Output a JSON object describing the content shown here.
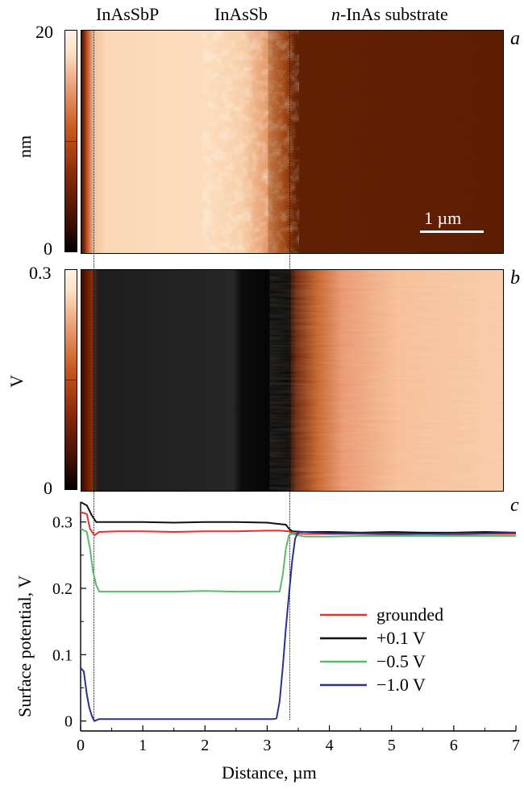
{
  "labels": {
    "layer_1": "InAsSbP",
    "layer_2": "InAsSb",
    "substrate_italic": "n",
    "substrate_rest": "-InAs substrate"
  },
  "panels": {
    "a": {
      "letter": "a",
      "colorbar_max": "20",
      "colorbar_min": "0",
      "colorbar_unit": "nm",
      "scalebar": "1 µm"
    },
    "b": {
      "letter": "b",
      "colorbar_max": "0.3",
      "colorbar_min": "0",
      "colorbar_unit": "V"
    },
    "c": {
      "letter": "c"
    }
  },
  "colors": {
    "grounded": "#e8302a",
    "plus_0_1": "#111111",
    "minus_0_5": "#5cba6c",
    "minus_1_0": "#2e2f8f",
    "map_dark": "#3a0a00",
    "map_light": "#fbd8b6"
  },
  "chart_data": {
    "type": "line",
    "xlabel": "Distance, µm",
    "ylabel": "Surface potential, V",
    "xlim": [
      0,
      7
    ],
    "ylim": [
      -0.015,
      0.33
    ],
    "xticks": [
      0,
      1,
      2,
      3,
      4,
      5,
      6,
      7
    ],
    "yticks": [
      0,
      0.1,
      0.2,
      0.3
    ],
    "ytick_labels": [
      "0",
      "0.1",
      "0.2",
      "0.3"
    ],
    "legend_position": "right",
    "vertical_markers_x": [
      0.2,
      3.35
    ],
    "series": [
      {
        "name": "grounded",
        "color": "#e8302a",
        "x": [
          0.0,
          0.1,
          0.15,
          0.22,
          0.3,
          0.6,
          1.0,
          1.5,
          2.0,
          2.5,
          3.0,
          3.2,
          3.35,
          3.4,
          3.6,
          4.0,
          4.5,
          5.0,
          5.5,
          6.0,
          6.5,
          7.0
        ],
        "values": [
          0.315,
          0.312,
          0.29,
          0.28,
          0.285,
          0.286,
          0.286,
          0.285,
          0.286,
          0.286,
          0.287,
          0.287,
          0.286,
          0.283,
          0.282,
          0.282,
          0.282,
          0.281,
          0.282,
          0.281,
          0.282,
          0.282
        ]
      },
      {
        "name": "+0.1 V",
        "color": "#111111",
        "x": [
          0.0,
          0.1,
          0.18,
          0.25,
          0.5,
          1.0,
          1.5,
          2.0,
          2.5,
          3.0,
          3.2,
          3.3,
          3.35,
          3.4,
          3.6,
          4.0,
          4.5,
          5.0,
          5.5,
          6.0,
          6.5,
          7.0
        ],
        "values": [
          0.33,
          0.325,
          0.31,
          0.3,
          0.3,
          0.3,
          0.299,
          0.3,
          0.3,
          0.299,
          0.297,
          0.296,
          0.29,
          0.286,
          0.285,
          0.285,
          0.284,
          0.285,
          0.284,
          0.284,
          0.285,
          0.284
        ]
      },
      {
        "name": "−0.5 V",
        "color": "#5cba6c",
        "x": [
          0.0,
          0.1,
          0.15,
          0.2,
          0.25,
          0.3,
          0.5,
          1.0,
          1.5,
          2.0,
          2.5,
          3.0,
          3.2,
          3.25,
          3.3,
          3.35,
          3.4,
          3.6,
          4.0,
          4.5,
          5.0,
          5.5,
          6.0,
          6.5,
          7.0
        ],
        "values": [
          0.29,
          0.285,
          0.26,
          0.225,
          0.205,
          0.195,
          0.195,
          0.195,
          0.195,
          0.196,
          0.195,
          0.195,
          0.195,
          0.22,
          0.26,
          0.28,
          0.282,
          0.278,
          0.278,
          0.279,
          0.279,
          0.279,
          0.279,
          0.279,
          0.279
        ]
      },
      {
        "name": "−1.0 V",
        "color": "#2e2f8f",
        "x": [
          0.0,
          0.05,
          0.1,
          0.14,
          0.18,
          0.22,
          0.3,
          0.6,
          1.0,
          1.5,
          2.0,
          2.5,
          3.0,
          3.1,
          3.15,
          3.2,
          3.25,
          3.3,
          3.35,
          3.4,
          3.45,
          3.5,
          3.6,
          4.0,
          4.5,
          5.0,
          5.5,
          6.0,
          6.5,
          7.0
        ],
        "values": [
          0.08,
          0.075,
          0.04,
          0.02,
          0.008,
          0.0,
          0.003,
          0.003,
          0.003,
          0.003,
          0.003,
          0.003,
          0.003,
          0.003,
          0.004,
          0.03,
          0.08,
          0.14,
          0.19,
          0.24,
          0.275,
          0.285,
          0.285,
          0.283,
          0.283,
          0.283,
          0.282,
          0.283,
          0.283,
          0.284
        ]
      }
    ]
  }
}
